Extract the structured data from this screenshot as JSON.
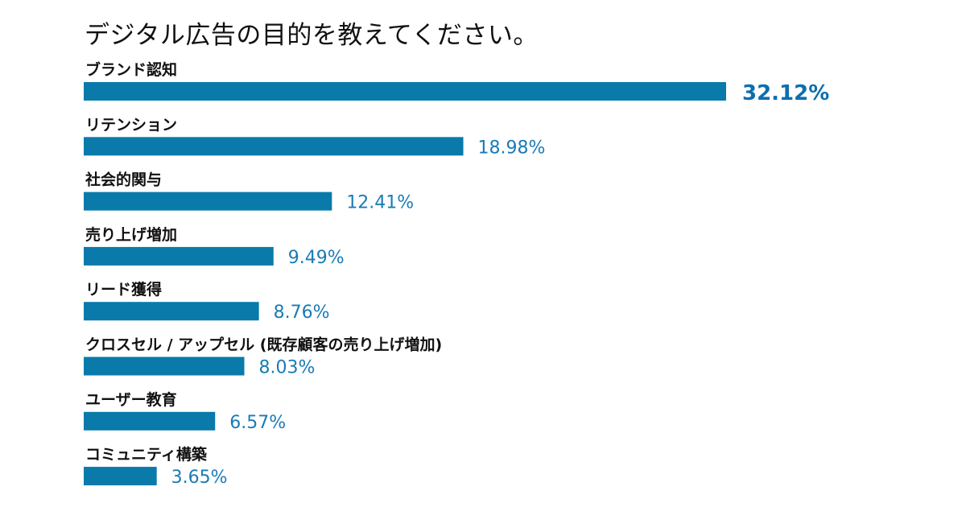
{
  "chart_data": {
    "type": "bar",
    "orientation": "horizontal",
    "title": "デジタル広告の目的を教えてください。",
    "categories": [
      "ブランド認知",
      "リテンション",
      "社会的関与",
      "売り上げ増加",
      "リード獲得",
      "クロスセル / アップセル (既存顧客の売り上げ増加)",
      "ユーザー教育",
      "コミュニティ構築"
    ],
    "values": [
      32.12,
      18.98,
      12.41,
      9.49,
      8.76,
      8.03,
      6.57,
      3.65
    ],
    "value_labels": [
      "32.12%",
      "18.98%",
      "12.41%",
      "9.49%",
      "8.76%",
      "8.03%",
      "6.57%",
      "3.65%"
    ],
    "xlabel": "",
    "ylabel": "",
    "bar_color": "#0a7aaa",
    "label_color": "#1a7bb5",
    "grid": false,
    "legend": "none"
  }
}
